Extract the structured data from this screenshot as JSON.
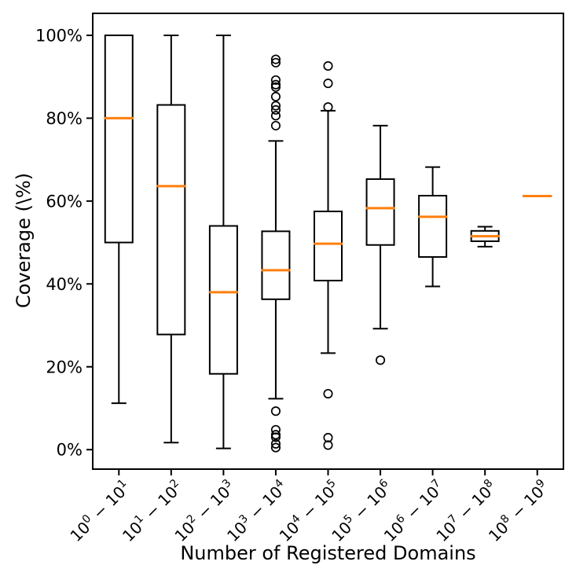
{
  "chart_data": {
    "type": "boxplot",
    "title": "",
    "xlabel": "Number of Registered Domains",
    "ylabel": "Coverage (\\%)",
    "x_base": "10",
    "x_separator": "−",
    "grid": false,
    "legend": "none",
    "ylim": [
      -4.7,
      105.3
    ],
    "yticks": [
      {
        "value": 0,
        "label": "0%"
      },
      {
        "value": 20,
        "label": "20%"
      },
      {
        "value": 40,
        "label": "40%"
      },
      {
        "value": 60,
        "label": "60%"
      },
      {
        "value": 80,
        "label": "80%"
      },
      {
        "value": 100,
        "label": "100%"
      }
    ],
    "colors": {
      "median": "#ff7f0e",
      "box": "#000000",
      "background": "#ffffff"
    },
    "boxes": [
      {
        "exp_lo": "0",
        "exp_hi": "1",
        "whislo": 11.2,
        "q1": 50.0,
        "med": 80.0,
        "q3": 100.0,
        "whishi": 100.0,
        "fliers": []
      },
      {
        "exp_lo": "1",
        "exp_hi": "2",
        "whislo": 1.7,
        "q1": 27.8,
        "med": 63.6,
        "q3": 83.2,
        "whishi": 100.0,
        "fliers": []
      },
      {
        "exp_lo": "2",
        "exp_hi": "3",
        "whislo": 0.3,
        "q1": 18.3,
        "med": 38.0,
        "q3": 54.0,
        "whishi": 100.0,
        "fliers": []
      },
      {
        "exp_lo": "3",
        "exp_hi": "4",
        "whislo": 12.3,
        "q1": 36.3,
        "med": 43.3,
        "q3": 52.7,
        "whishi": 74.5,
        "fliers": [
          94.2,
          93.4,
          89.2,
          88.1,
          87.5,
          85.2,
          83.0,
          82.0,
          80.6,
          78.2,
          9.3,
          4.8,
          3.6,
          3.0,
          1.4,
          0.5
        ]
      },
      {
        "exp_lo": "4",
        "exp_hi": "5",
        "whislo": 23.3,
        "q1": 40.8,
        "med": 49.7,
        "q3": 57.5,
        "whishi": 81.8,
        "fliers": [
          92.6,
          88.4,
          82.7,
          13.5,
          2.9,
          1.1
        ]
      },
      {
        "exp_lo": "5",
        "exp_hi": "6",
        "whislo": 29.2,
        "q1": 49.4,
        "med": 58.3,
        "q3": 65.3,
        "whishi": 78.2,
        "fliers": [
          21.6
        ]
      },
      {
        "exp_lo": "6",
        "exp_hi": "7",
        "whislo": 39.4,
        "q1": 46.5,
        "med": 56.2,
        "q3": 61.3,
        "whishi": 68.2,
        "fliers": []
      },
      {
        "exp_lo": "7",
        "exp_hi": "8",
        "whislo": 49.0,
        "q1": 50.3,
        "med": 51.5,
        "q3": 52.8,
        "whishi": 53.8,
        "fliers": []
      },
      {
        "exp_lo": "8",
        "exp_hi": "9",
        "whislo": 61.2,
        "q1": 61.2,
        "med": 61.2,
        "q3": 61.2,
        "whishi": 61.2,
        "fliers": []
      }
    ]
  }
}
